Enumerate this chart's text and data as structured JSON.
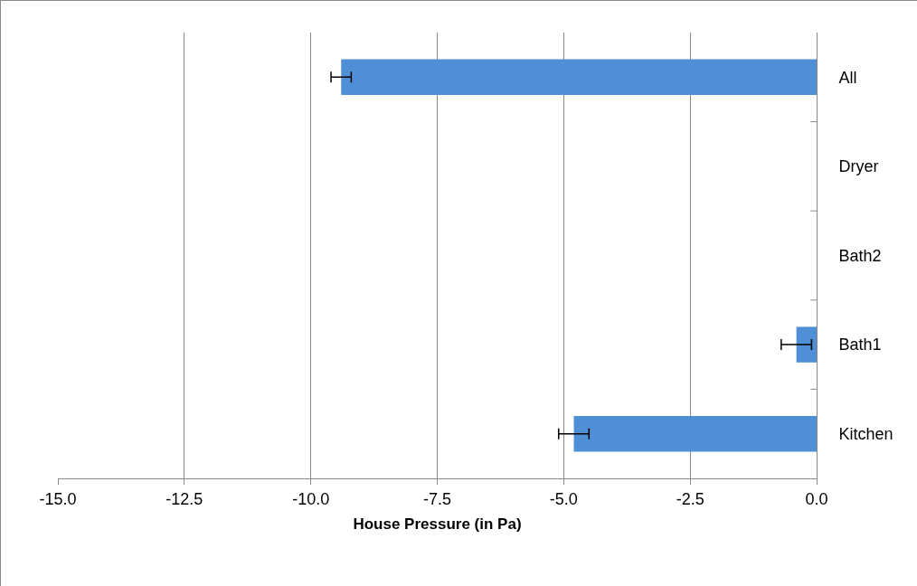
{
  "chart_data": {
    "type": "bar",
    "orientation": "horizontal",
    "xlabel": "House Pressure (in Pa)",
    "categories": [
      "All",
      "Dryer",
      "Bath2",
      "Bath1",
      "Kitchen"
    ],
    "values": [
      -9.4,
      null,
      null,
      -0.4,
      -4.8
    ],
    "errors": [
      0.2,
      null,
      null,
      0.3,
      0.3
    ],
    "color": "#4f8fd6",
    "xlim": [
      -15,
      0
    ],
    "xticks": [
      {
        "value": -15,
        "label": "-15.0"
      },
      {
        "value": -12.5,
        "label": "-12.5"
      },
      {
        "value": -10,
        "label": "-10.0"
      },
      {
        "value": -7.5,
        "label": "-7.5"
      },
      {
        "value": -5,
        "label": "-5.0"
      },
      {
        "value": -2.5,
        "label": "-2.5"
      },
      {
        "value": 0,
        "label": "0.0"
      }
    ],
    "grid": "x"
  }
}
